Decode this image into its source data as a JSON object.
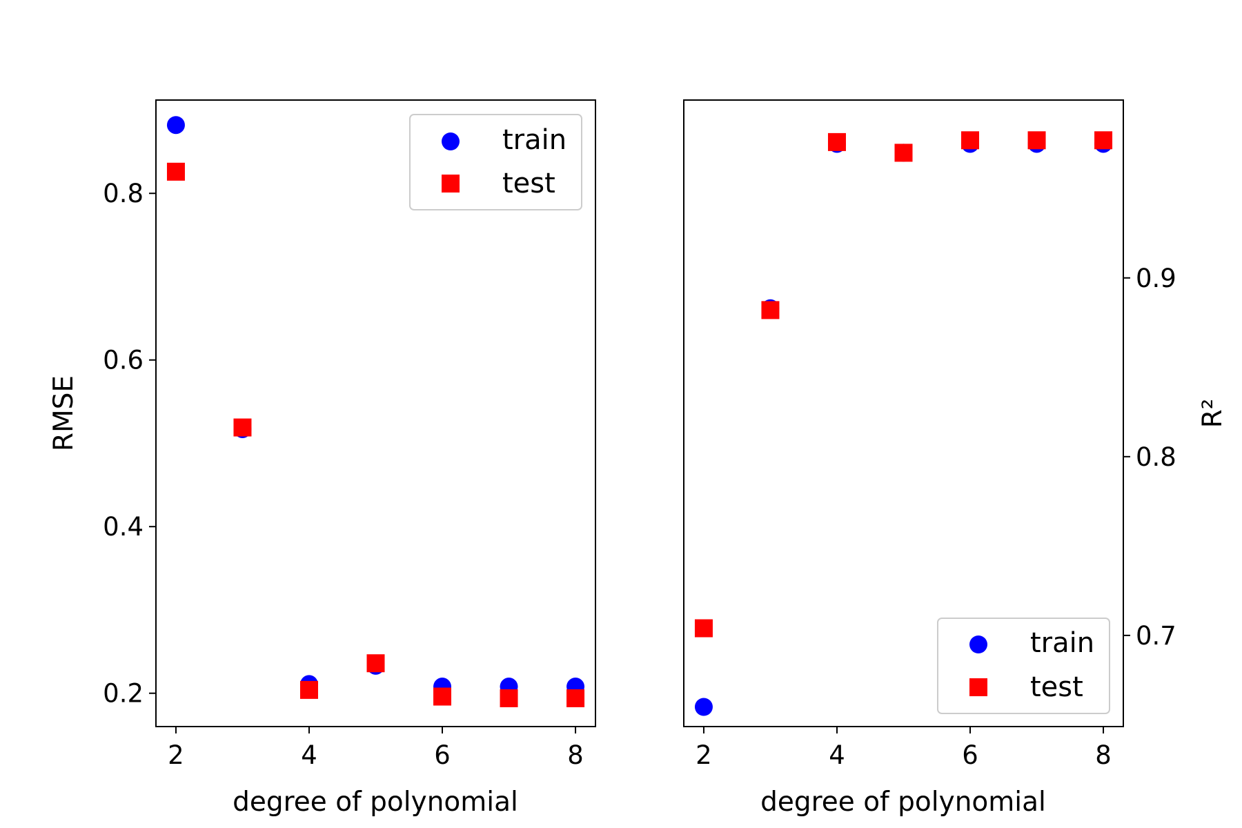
{
  "chart_data": [
    {
      "type": "scatter",
      "title": "",
      "xlabel": "degree of polynomial",
      "ylabel": "RMSE",
      "ylabel_position": "left",
      "xlim": [
        1.7,
        8.3
      ],
      "ylim": [
        0.16,
        0.912
      ],
      "xticks": [
        2,
        4,
        6,
        8
      ],
      "yticks": [
        0.2,
        0.4,
        0.6,
        0.8
      ],
      "grid": false,
      "legend_position": "top-right",
      "x": [
        2,
        3,
        4,
        5,
        6,
        7,
        8
      ],
      "series": [
        {
          "name": "train",
          "marker": "circle",
          "color": "#0000ff",
          "values": [
            0.882,
            0.517,
            0.211,
            0.233,
            0.208,
            0.208,
            0.208
          ]
        },
        {
          "name": "test",
          "marker": "square",
          "color": "#ff0000",
          "values": [
            0.826,
            0.519,
            0.204,
            0.236,
            0.196,
            0.194,
            0.194
          ]
        }
      ]
    },
    {
      "type": "scatter",
      "title": "",
      "xlabel": "degree of polynomial",
      "ylabel": "R²",
      "ylabel_position": "right",
      "xlim": [
        1.7,
        8.3
      ],
      "ylim": [
        0.649,
        0.9995
      ],
      "xticks": [
        2,
        4,
        6,
        8
      ],
      "yticks": [
        0.7,
        0.8,
        0.9
      ],
      "grid": false,
      "legend_position": "bottom-right",
      "x": [
        2,
        3,
        4,
        5,
        6,
        7,
        8
      ],
      "series": [
        {
          "name": "train",
          "marker": "circle",
          "color": "#0000ff",
          "values": [
            0.66,
            0.883,
            0.975,
            0.97,
            0.975,
            0.975,
            0.975
          ]
        },
        {
          "name": "test",
          "marker": "square",
          "color": "#ff0000",
          "values": [
            0.704,
            0.882,
            0.976,
            0.97,
            0.977,
            0.977,
            0.977
          ]
        }
      ]
    }
  ]
}
